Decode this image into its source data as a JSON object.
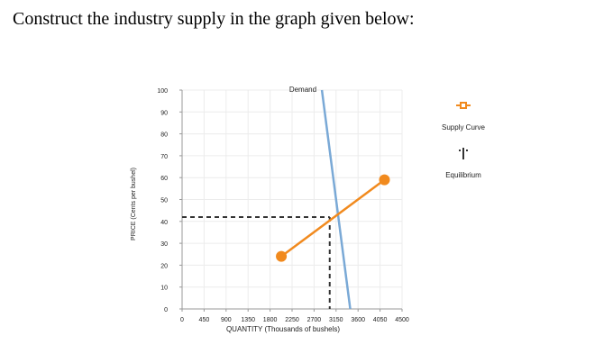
{
  "question": "Construct the industry supply in the graph given below:",
  "chart_data": {
    "type": "line",
    "xlabel": "QUANTITY (Thousands of bushels)",
    "ylabel": "PRICE (Cents per bushel)",
    "xlim": [
      0,
      4500
    ],
    "ylim": [
      0,
      100
    ],
    "x_ticks": [
      "0",
      "450",
      "900",
      "1350",
      "1800",
      "2250",
      "2700",
      "3150",
      "3600",
      "4050",
      "4500"
    ],
    "y_ticks": [
      "0",
      "10",
      "20",
      "30",
      "40",
      "50",
      "60",
      "70",
      "80",
      "90",
      "100"
    ],
    "grid": true,
    "series": [
      {
        "name": "Demand",
        "color": "#7aa9d6",
        "points": [
          [
            2860,
            100
          ],
          [
            3440,
            0
          ]
        ]
      },
      {
        "name": "Supply Curve",
        "color": "#f18a1e",
        "marker": "circle",
        "points": [
          [
            2030,
            24
          ],
          [
            4140,
            59
          ]
        ]
      }
    ],
    "equilibrium": {
      "name": "Equilibrium",
      "x": 3020,
      "y": 42,
      "color": "#333333"
    },
    "legend": {
      "placement": "right",
      "items": [
        "Supply Curve",
        "Equilibrium"
      ]
    }
  }
}
